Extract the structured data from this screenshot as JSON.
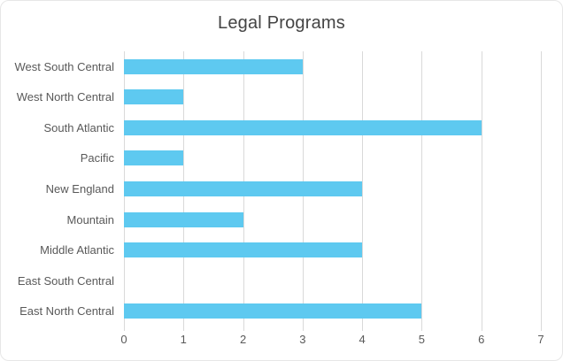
{
  "chart": {
    "title": "Legal Programs"
  },
  "chart_data": {
    "type": "bar",
    "orientation": "horizontal",
    "title": "Legal Programs",
    "xlabel": "",
    "ylabel": "",
    "categories": [
      "West South Central",
      "West North Central",
      "South Atlantic",
      "Pacific",
      "New England",
      "Mountain",
      "Middle Atlantic",
      "East South Central",
      "East North Central"
    ],
    "values": [
      3,
      1,
      6,
      1,
      4,
      2,
      4,
      0,
      5
    ],
    "xlim": [
      0,
      7
    ],
    "x_ticks": [
      0,
      1,
      2,
      3,
      4,
      5,
      6,
      7
    ],
    "grid": "vertical-on",
    "legend": "none",
    "colors": {
      "bar": "#5EC9F0",
      "gridline": "#D9D9D9",
      "axis_label": "#595959",
      "title": "#444444",
      "background": "#FFFFFF"
    }
  }
}
